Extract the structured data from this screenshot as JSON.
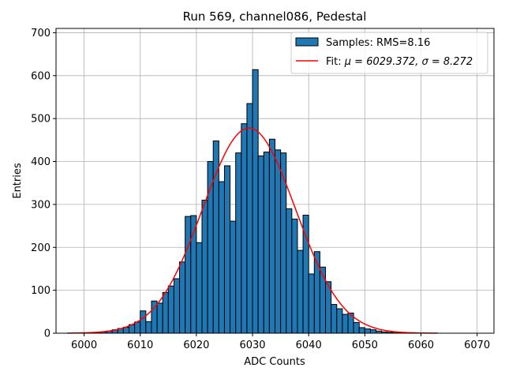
{
  "chart_data": {
    "type": "bar",
    "title": "Run 569, channel086, Pedestal",
    "xlabel": "ADC Counts",
    "ylabel": "Entries",
    "xlim": [
      5995,
      6073
    ],
    "ylim": [
      0,
      710
    ],
    "xticks": [
      6000,
      6010,
      6020,
      6030,
      6040,
      6050,
      6060,
      6070
    ],
    "yticks": [
      0,
      100,
      200,
      300,
      400,
      500,
      600,
      700
    ],
    "grid": true,
    "legend_position": "top-right",
    "bin_width": 1,
    "bars": {
      "name": "Samples: RMS=8.16",
      "color": "#1f77b4",
      "bin_left_edges": [
        6002,
        6003,
        6004,
        6005,
        6006,
        6007,
        6008,
        6009,
        6010,
        6011,
        6012,
        6013,
        6014,
        6015,
        6016,
        6017,
        6018,
        6019,
        6020,
        6021,
        6022,
        6023,
        6024,
        6025,
        6026,
        6027,
        6028,
        6029,
        6030,
        6031,
        6032,
        6033,
        6034,
        6035,
        6036,
        6037,
        6038,
        6039,
        6040,
        6041,
        6042,
        6043,
        6044,
        6045,
        6046,
        6047,
        6048,
        6049,
        6050,
        6051,
        6052,
        6053,
        6054,
        6055,
        6056,
        6057,
        6058
      ],
      "counts": [
        2,
        3,
        5,
        8,
        11,
        14,
        20,
        26,
        52,
        27,
        75,
        70,
        95,
        110,
        127,
        166,
        272,
        274,
        211,
        310,
        400,
        448,
        353,
        390,
        261,
        420,
        488,
        535,
        614,
        413,
        422,
        452,
        427,
        420,
        290,
        266,
        193,
        275,
        138,
        190,
        154,
        120,
        67,
        57,
        44,
        47,
        25,
        13,
        10,
        8,
        5,
        3,
        2,
        1,
        1,
        1,
        1
      ]
    },
    "fit": {
      "name_text": "Fit: ",
      "name_math": "μ = 6029.372, σ = 8.272",
      "color": "#ff0000",
      "mu": 6029.372,
      "sigma": 8.272,
      "amplitude": 478,
      "x_range": [
        5997,
        6063
      ]
    }
  }
}
